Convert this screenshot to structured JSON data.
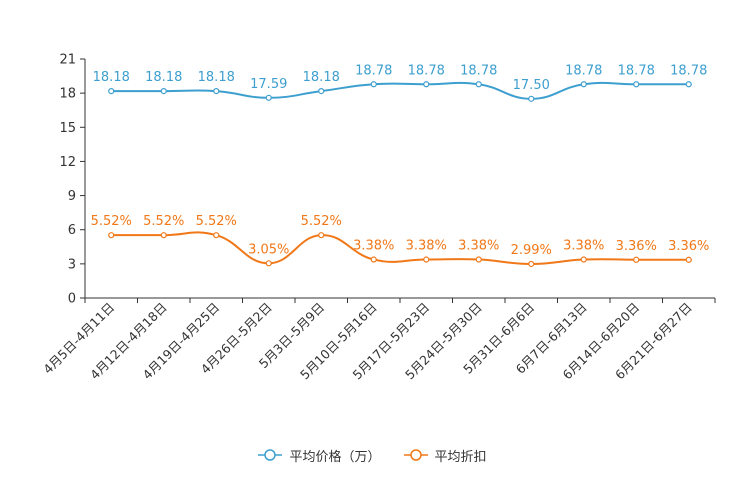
{
  "chart_data": {
    "type": "line",
    "title": "",
    "xlabel": "",
    "ylabel": "",
    "ylim": [
      0,
      21
    ],
    "yticks": [
      0,
      3,
      6,
      9,
      12,
      15,
      18,
      21
    ],
    "categories": [
      "4月5日-4月11日",
      "4月12日-4月18日",
      "4月19日-4月25日",
      "4月26日-5月2日",
      "5月3日-5月9日",
      "5月10日-5月16日",
      "5月17日-5月23日",
      "5月24日-5月30日",
      "5月31日-6月6日",
      "6月7日-6月13日",
      "6月14日-6月20日",
      "6月21日-6月27日"
    ],
    "series": [
      {
        "name": "平均价格（万）",
        "color": "#3d9fcf",
        "values": [
          18.18,
          18.18,
          18.18,
          17.59,
          18.18,
          18.78,
          18.78,
          18.78,
          17.5,
          18.78,
          18.78,
          18.78
        ],
        "labels": [
          "18.18",
          "18.18",
          "18.18",
          "17.59",
          "18.18",
          "18.78",
          "18.78",
          "18.78",
          "17.50",
          "18.78",
          "18.78",
          "18.78"
        ]
      },
      {
        "name": "平均折扣",
        "color": "#f07818",
        "values": [
          5.52,
          5.52,
          5.52,
          3.05,
          5.52,
          3.38,
          3.38,
          3.38,
          2.99,
          3.38,
          3.36,
          3.36
        ],
        "labels": [
          "5.52%",
          "5.52%",
          "5.52%",
          "3.05%",
          "5.52%",
          "3.38%",
          "3.38%",
          "3.38%",
          "2.99%",
          "3.38%",
          "3.36%",
          "3.36%"
        ]
      }
    ],
    "legend_position": "bottom-center",
    "grid": false
  }
}
